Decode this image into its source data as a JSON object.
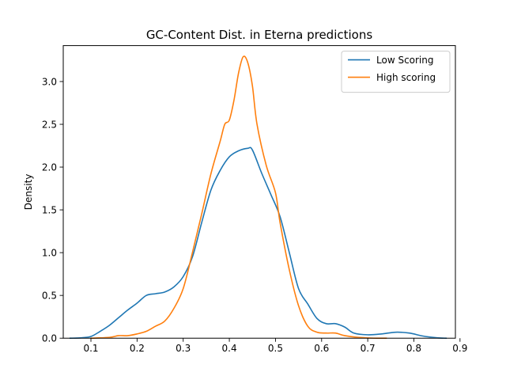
{
  "chart_data": {
    "type": "line",
    "title": "GC-Content Dist. in Eterna predictions",
    "xlabel": "",
    "ylabel": "Density",
    "xlim": [
      0.04,
      0.89
    ],
    "ylim": [
      0,
      3.42
    ],
    "xticks": [
      0.1,
      0.2,
      0.3,
      0.4,
      0.5,
      0.6,
      0.7,
      0.8,
      0.9
    ],
    "xtick_labels": [
      "0.1",
      "0.2",
      "0.3",
      "0.4",
      "0.5",
      "0.6",
      "0.7",
      "0.8",
      "0.9"
    ],
    "yticks": [
      0.0,
      0.5,
      1.0,
      1.5,
      2.0,
      2.5,
      3.0
    ],
    "ytick_labels": [
      "0.0",
      "0.5",
      "1.0",
      "1.5",
      "2.0",
      "2.5",
      "3.0"
    ],
    "grid": false,
    "legend_position": "top-right",
    "series": [
      {
        "name": "Low Scoring",
        "color": "#1f77b4",
        "points": [
          [
            0.055,
            0.0
          ],
          [
            0.08,
            0.005
          ],
          [
            0.1,
            0.02
          ],
          [
            0.12,
            0.08
          ],
          [
            0.14,
            0.15
          ],
          [
            0.16,
            0.24
          ],
          [
            0.18,
            0.33
          ],
          [
            0.2,
            0.41
          ],
          [
            0.22,
            0.5
          ],
          [
            0.24,
            0.52
          ],
          [
            0.26,
            0.54
          ],
          [
            0.28,
            0.6
          ],
          [
            0.3,
            0.72
          ],
          [
            0.32,
            0.95
          ],
          [
            0.34,
            1.35
          ],
          [
            0.36,
            1.73
          ],
          [
            0.38,
            1.96
          ],
          [
            0.4,
            2.12
          ],
          [
            0.42,
            2.19
          ],
          [
            0.44,
            2.22
          ],
          [
            0.45,
            2.2
          ],
          [
            0.47,
            1.93
          ],
          [
            0.49,
            1.68
          ],
          [
            0.51,
            1.42
          ],
          [
            0.53,
            1.0
          ],
          [
            0.55,
            0.58
          ],
          [
            0.57,
            0.4
          ],
          [
            0.59,
            0.23
          ],
          [
            0.61,
            0.17
          ],
          [
            0.63,
            0.17
          ],
          [
            0.65,
            0.13
          ],
          [
            0.67,
            0.06
          ],
          [
            0.7,
            0.04
          ],
          [
            0.73,
            0.05
          ],
          [
            0.76,
            0.07
          ],
          [
            0.79,
            0.06
          ],
          [
            0.82,
            0.025
          ],
          [
            0.85,
            0.005
          ],
          [
            0.87,
            0.0
          ]
        ]
      },
      {
        "name": "High scoring",
        "color": "#ff7f0e",
        "points": [
          [
            0.1,
            0.0
          ],
          [
            0.14,
            0.01
          ],
          [
            0.16,
            0.03
          ],
          [
            0.18,
            0.03
          ],
          [
            0.2,
            0.05
          ],
          [
            0.22,
            0.08
          ],
          [
            0.24,
            0.14
          ],
          [
            0.26,
            0.2
          ],
          [
            0.28,
            0.35
          ],
          [
            0.3,
            0.58
          ],
          [
            0.32,
            1.0
          ],
          [
            0.34,
            1.45
          ],
          [
            0.36,
            1.92
          ],
          [
            0.38,
            2.3
          ],
          [
            0.39,
            2.5
          ],
          [
            0.4,
            2.55
          ],
          [
            0.41,
            2.78
          ],
          [
            0.42,
            3.1
          ],
          [
            0.43,
            3.29
          ],
          [
            0.44,
            3.22
          ],
          [
            0.45,
            2.95
          ],
          [
            0.46,
            2.5
          ],
          [
            0.48,
            2.02
          ],
          [
            0.5,
            1.7
          ],
          [
            0.51,
            1.35
          ],
          [
            0.53,
            0.8
          ],
          [
            0.55,
            0.38
          ],
          [
            0.57,
            0.14
          ],
          [
            0.59,
            0.07
          ],
          [
            0.61,
            0.06
          ],
          [
            0.63,
            0.06
          ],
          [
            0.65,
            0.03
          ],
          [
            0.68,
            0.01
          ],
          [
            0.72,
            0.0
          ],
          [
            0.74,
            0.0
          ]
        ]
      }
    ]
  }
}
